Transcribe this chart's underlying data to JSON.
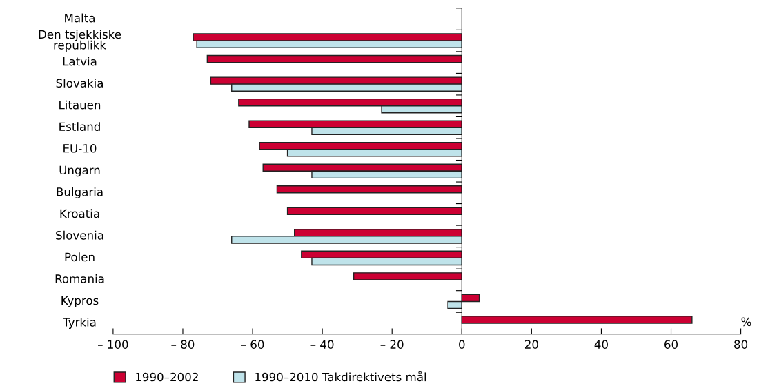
{
  "chart_data": {
    "type": "bar",
    "orientation": "horizontal",
    "xlabel": "%",
    "categories": [
      "Malta",
      "Den tsjekkiske\nrepublikk",
      "Latvia",
      "Slovakia",
      "Litauen",
      "Estland",
      "EU-10",
      "Ungarn",
      "Bulgaria",
      "Kroatia",
      "Slovenia",
      "Polen",
      "Romania",
      "Kypros",
      "Tyrkia"
    ],
    "series": [
      {
        "name": "1990–2002",
        "color": "#cc0033",
        "values": [
          null,
          -77,
          -73,
          -72,
          -64,
          -61,
          -58,
          -57,
          -53,
          -50,
          -48,
          -46,
          -31,
          5,
          66
        ]
      },
      {
        "name": "1990–2010 Takdirektivets mål",
        "color": "#bfe3ea",
        "values": [
          null,
          -76,
          null,
          -66,
          -23,
          -43,
          -50,
          -43,
          null,
          null,
          -66,
          -43,
          null,
          -4,
          null
        ]
      }
    ],
    "xlim": [
      -100,
      80
    ],
    "xticks": [
      {
        "value": -100,
        "label": "– 100"
      },
      {
        "value": -80,
        "label": "– 80"
      },
      {
        "value": -60,
        "label": "– 60"
      },
      {
        "value": -40,
        "label": "– 40"
      },
      {
        "value": -20,
        "label": "– 20"
      },
      0,
      20,
      40,
      60,
      80
    ],
    "legend": "bottom"
  }
}
